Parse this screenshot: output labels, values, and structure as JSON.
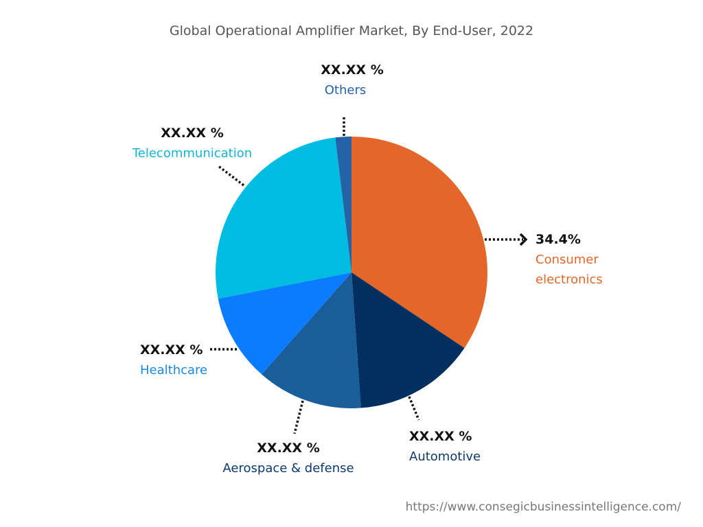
{
  "chart_data": {
    "type": "pie",
    "title": "Global Operational Amplifier Market, By End-User, 2022",
    "start_angle_deg": 0,
    "direction": "clockwise",
    "slices": [
      {
        "name": "Consumer electronics",
        "value": 34.4,
        "label": "34.4%",
        "color": "#E3672A",
        "text_color": "#E3672A"
      },
      {
        "name": "Automotive",
        "value": 14.5,
        "label": "XX.XX %",
        "color": "#012F5F",
        "text_color": "#0D3A6B"
      },
      {
        "name": "Aerospace & defense",
        "value": 12.6,
        "label": "XX.XX %",
        "color": "#1A5E99",
        "text_color": "#0D3A6B"
      },
      {
        "name": "Healthcare",
        "value": 10.4,
        "label": "XX.XX %",
        "color": "#0A7CFF",
        "text_color": "#1A88E0"
      },
      {
        "name": "Telecommunication",
        "value": 26.2,
        "label": "XX.XX %",
        "color": "#00BCE0",
        "text_color": "#12B5D6"
      },
      {
        "name": "Others",
        "value": 1.9,
        "label": "XX.XX %",
        "color": "#2462A8",
        "text_color": "#2462A8"
      }
    ]
  },
  "source": "https://www.consegicbusinessintelligence.com/"
}
